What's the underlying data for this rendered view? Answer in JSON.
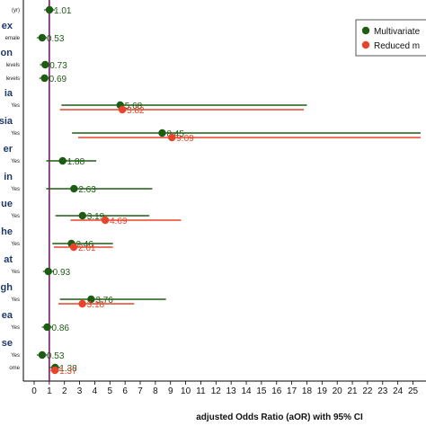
{
  "chart_data": {
    "type": "forest",
    "xlabel": "adjusted Odds Ratio (aOR) with 95% CI",
    "xlim": [
      0,
      25.5
    ],
    "xticks": [
      0,
      1,
      2,
      3,
      4,
      5,
      6,
      7,
      8,
      9,
      10,
      11,
      12,
      13,
      14,
      15,
      16,
      17,
      18,
      19,
      20,
      21,
      22,
      23,
      24,
      25
    ],
    "reference_line": 1,
    "legend": {
      "placement": "top-right",
      "entries": [
        {
          "name": "Multivariate",
          "color": "#1e5c14"
        },
        {
          "name": "Reduced m",
          "color": "#e8442c"
        }
      ]
    },
    "colors": {
      "multivariate": "#1e5c14",
      "reduced": "#e8442c",
      "reference": "#7a1a6e",
      "var_label": "#1f3a6b"
    },
    "rows": [
      {
        "var": "",
        "level": "(yr)",
        "mv": {
          "est": 1.01,
          "lo": 1.01,
          "hi": 1.01,
          "label": "1.01"
        }
      },
      {
        "var": "ex",
        "level": "emale",
        "mv": {
          "est": 0.53,
          "lo": 0.53,
          "hi": 0.53,
          "label": "0.53"
        }
      },
      {
        "var": "on",
        "level": "levels",
        "mv": {
          "est": 0.73,
          "lo": 0.73,
          "hi": 0.73,
          "label": "0.73"
        }
      },
      {
        "var": "",
        "level": "levels",
        "mv": {
          "est": 0.69,
          "lo": 0.69,
          "hi": 0.69,
          "label": "0.69"
        }
      },
      {
        "var": "ia",
        "level": "Yes",
        "mv": {
          "est": 5.68,
          "lo": 1.8,
          "hi": 18.0,
          "label": "5.68"
        },
        "rd": {
          "est": 5.82,
          "lo": 1.7,
          "hi": 17.8,
          "label": "5.82"
        }
      },
      {
        "var": "sia",
        "level": "Yes",
        "mv": {
          "est": 8.45,
          "lo": 2.5,
          "hi": 25.5,
          "label": "8.45"
        },
        "rd": {
          "est": 9.09,
          "lo": 2.9,
          "hi": 25.5,
          "label": "9.09"
        }
      },
      {
        "var": "er",
        "level": "Yes",
        "mv": {
          "est": 1.88,
          "lo": 0.8,
          "hi": 4.1,
          "label": "1.88"
        }
      },
      {
        "var": "in",
        "level": "Yes",
        "mv": {
          "est": 2.63,
          "lo": 0.8,
          "hi": 7.8,
          "label": "2.63"
        }
      },
      {
        "var": "ue",
        "level": "Yes",
        "mv": {
          "est": 3.19,
          "lo": 1.4,
          "hi": 7.6,
          "label": "3.19"
        },
        "rd": {
          "est": 4.69,
          "lo": 2.4,
          "hi": 9.7,
          "label": "4.69"
        }
      },
      {
        "var": "he",
        "level": "Yes",
        "mv": {
          "est": 2.46,
          "lo": 1.2,
          "hi": 5.2,
          "label": "2.46"
        },
        "rd": {
          "est": 2.61,
          "lo": 1.3,
          "hi": 5.2,
          "label": "2.61"
        }
      },
      {
        "var": "at",
        "level": "Yes",
        "mv": {
          "est": 0.93,
          "lo": 0.93,
          "hi": 0.93,
          "label": "0.93"
        }
      },
      {
        "var": "gh",
        "level": "Yes",
        "mv": {
          "est": 3.76,
          "lo": 1.7,
          "hi": 8.7,
          "label": "3.76"
        },
        "rd": {
          "est": 3.18,
          "lo": 1.6,
          "hi": 6.6,
          "label": "3.18"
        }
      },
      {
        "var": "ea",
        "level": "Yes",
        "mv": {
          "est": 0.86,
          "lo": 0.86,
          "hi": 0.86,
          "label": "0.86"
        }
      },
      {
        "var": "se",
        "level": "Yes",
        "mv": {
          "est": 0.53,
          "lo": 0.53,
          "hi": 0.53,
          "label": "0.53"
        }
      },
      {
        "var": "",
        "level": "ome",
        "mv": {
          "est": 1.38,
          "lo": 1.38,
          "hi": 1.38,
          "label": "1.38"
        },
        "rd": {
          "est": 1.37,
          "lo": 1.37,
          "hi": 1.37,
          "label": "1.37"
        }
      }
    ]
  }
}
